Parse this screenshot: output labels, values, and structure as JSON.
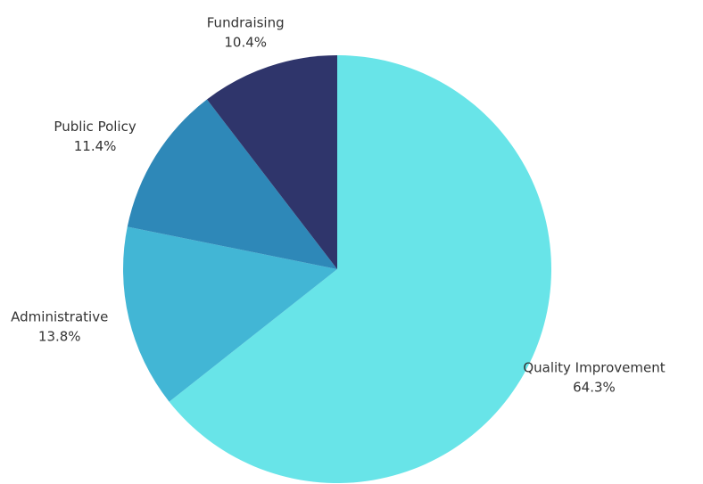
{
  "chart_data": {
    "type": "pie",
    "categories": [
      "Quality Improvement",
      "Administrative",
      "Public Policy",
      "Fundraising"
    ],
    "values": [
      64.3,
      13.8,
      11.4,
      10.4
    ],
    "value_labels": [
      "64.3%",
      "13.8%",
      "11.4%",
      "10.4%"
    ],
    "colors": [
      "#68e4e8",
      "#42b6d5",
      "#2e88b8",
      "#2f356b"
    ]
  }
}
